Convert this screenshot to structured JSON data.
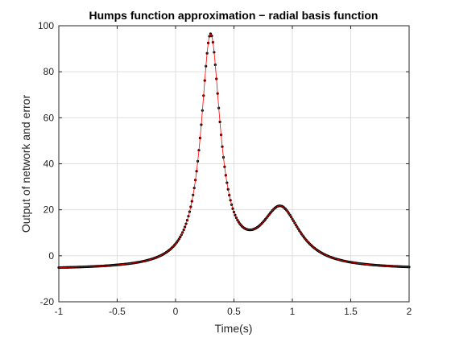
{
  "chart_data": {
    "type": "scatter",
    "title": "Humps function approximation − radial basis function",
    "xlabel": "Time(s)",
    "ylabel": "Output of network and error",
    "xlim": [
      -1,
      2
    ],
    "ylim": [
      -20,
      100
    ],
    "xticks": [
      -1,
      -0.5,
      0,
      0.5,
      1,
      1.5,
      2
    ],
    "yticks": [
      -20,
      0,
      20,
      40,
      60,
      80,
      100
    ],
    "xtick_labels": [
      "-1",
      "-0.5",
      "0",
      "0.5",
      "1",
      "1.5",
      "2"
    ],
    "ytick_labels": [
      "-20",
      "0",
      "20",
      "40",
      "60",
      "80",
      "100"
    ],
    "grid": true,
    "series": [
      {
        "name": "",
        "marker": "dot",
        "color": "#000000",
        "function": "humps",
        "x_start": -1,
        "x_end": 2,
        "x_step": 0.01
      },
      {
        "name": "",
        "style": "line",
        "color": "#ff0000",
        "function": "humps",
        "x_start": -1,
        "x_end": 2,
        "x_step": 0.005
      }
    ]
  }
}
